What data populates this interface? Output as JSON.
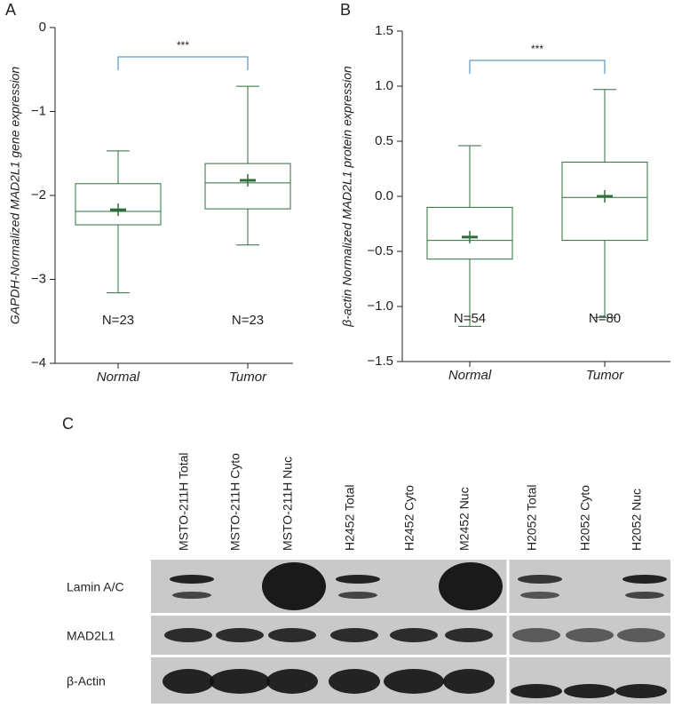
{
  "chart_data": [
    {
      "type": "box",
      "panel_label": "A",
      "ylabel": "GAPDH-Normalized MAD2L1 gene expression",
      "categories": [
        "Normal",
        "Tumor"
      ],
      "color": "#2f6e3b",
      "boxes": [
        {
          "whisker_low": -3.16,
          "q1": -2.35,
          "median": -2.19,
          "q3": -1.86,
          "whisker_high": -1.47,
          "mean": -2.17
        },
        {
          "whisker_low": -2.59,
          "q1": -2.16,
          "median": -1.85,
          "q3": -1.62,
          "whisker_high": -0.7,
          "mean": -1.82
        }
      ],
      "annotations": [
        "N=23",
        "N=23"
      ],
      "significance": "***",
      "significance_color": "#3a7fb5",
      "ylim": [
        -4,
        0
      ],
      "yticks": [
        {
          "value": -4,
          "label": "−4"
        },
        {
          "value": -3,
          "label": "−3"
        },
        {
          "value": -2,
          "label": "−2"
        },
        {
          "value": -1,
          "label": "−1"
        },
        0
      ]
    },
    {
      "type": "box",
      "panel_label": "B",
      "ylabel": "β-actin Normalized MAD2L1 protein expression",
      "categories": [
        "Normal",
        "Tumor"
      ],
      "color": "#2f6e3b",
      "boxes": [
        {
          "whisker_low": -1.18,
          "q1": -0.57,
          "median": -0.4,
          "q3": -0.1,
          "whisker_high": 0.46,
          "mean": -0.37
        },
        {
          "whisker_low": -1.1,
          "q1": -0.4,
          "median": -0.01,
          "q3": 0.31,
          "whisker_high": 0.97,
          "mean": 0
        }
      ],
      "annotations": [
        "N=54",
        "N=80"
      ],
      "significance": "***",
      "significance_color": "#3a7fb5",
      "ylim": [
        -1.5,
        1.5
      ],
      "yticks": [
        {
          "value": -1.5,
          "label": "−1.5"
        },
        {
          "value": -1,
          "label": "−1.0"
        },
        {
          "value": -0.5,
          "label": "−0.5"
        },
        {
          "value": 0,
          "label": "0.0"
        },
        0.5,
        {
          "value": 1,
          "label": "1.0"
        },
        1.5
      ]
    }
  ],
  "blot": {
    "panel_label": "C",
    "lanes": [
      "MSTO-211H Total",
      "MSTO-211H Cyto",
      "MSTO-211H Nuc",
      "H2452 Total",
      "H2452 Cyto",
      "M2452 Nuc",
      "H2052 Total",
      "H2052 Cyto",
      "H2052 Nuc"
    ],
    "rows": [
      "Lamin A/C",
      "MAD2L1",
      "β-Actin"
    ]
  }
}
